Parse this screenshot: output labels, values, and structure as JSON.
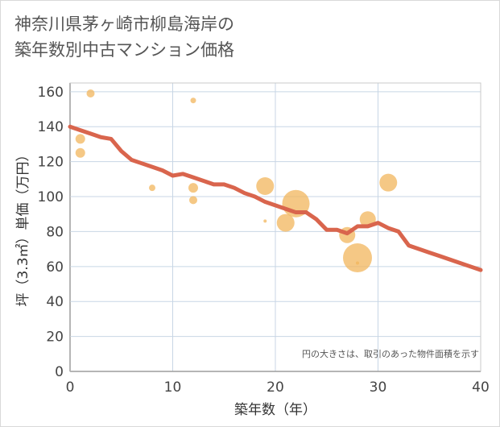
{
  "title_lines": [
    "神奈川県茅ヶ崎市柳島海岸の",
    "築年数別中古マンション価格"
  ],
  "chart_data": {
    "type": "scatter",
    "title": "神奈川県茅ヶ崎市柳島海岸の築年数別中古マンション価格",
    "xlabel": "築年数（年）",
    "ylabel": "坪（3.3㎡）単価（万円）",
    "xlim": [
      0,
      40
    ],
    "ylim": [
      0,
      165
    ],
    "xticks": [
      0,
      10,
      20,
      30,
      40
    ],
    "yticks": [
      0,
      20,
      40,
      60,
      80,
      100,
      120,
      140,
      160
    ],
    "grid": true,
    "note": "円の大きさは、取引のあった物件面積を示す",
    "scatter_color": "#f2b55c",
    "line_color": "#d9654d",
    "points": [
      {
        "x": 2,
        "y": 159,
        "size": 5
      },
      {
        "x": 1,
        "y": 133,
        "size": 6
      },
      {
        "x": 1,
        "y": 125,
        "size": 6
      },
      {
        "x": 8,
        "y": 105,
        "size": 4
      },
      {
        "x": 12,
        "y": 155,
        "size": 3.5
      },
      {
        "x": 12,
        "y": 105,
        "size": 6
      },
      {
        "x": 12,
        "y": 98,
        "size": 5
      },
      {
        "x": 19,
        "y": 106,
        "size": 11
      },
      {
        "x": 19,
        "y": 86,
        "size": 2
      },
      {
        "x": 21,
        "y": 85,
        "size": 11
      },
      {
        "x": 22,
        "y": 96,
        "size": 17
      },
      {
        "x": 27,
        "y": 78,
        "size": 10
      },
      {
        "x": 28,
        "y": 65,
        "size": 18
      },
      {
        "x": 28,
        "y": 62,
        "size": 2
      },
      {
        "x": 29,
        "y": 87,
        "size": 10
      },
      {
        "x": 31,
        "y": 108,
        "size": 11
      }
    ],
    "trend_line": {
      "x": [
        0,
        1,
        2,
        3,
        4,
        5,
        6,
        7,
        8,
        9,
        10,
        11,
        12,
        13,
        14,
        15,
        16,
        17,
        18,
        19,
        20,
        21,
        22,
        23,
        24,
        25,
        26,
        27,
        28,
        29,
        30,
        31,
        32,
        33,
        34,
        35,
        36,
        37,
        38,
        39,
        40
      ],
      "y": [
        140,
        138,
        136,
        134,
        133,
        126,
        121,
        119,
        117,
        115,
        112,
        113,
        111,
        109,
        107,
        107,
        105,
        102,
        100,
        97,
        95,
        93,
        91,
        91,
        87,
        81,
        81,
        79,
        83,
        83,
        85,
        82,
        80,
        72,
        70,
        68,
        66,
        64,
        62,
        60,
        58
      ]
    }
  }
}
